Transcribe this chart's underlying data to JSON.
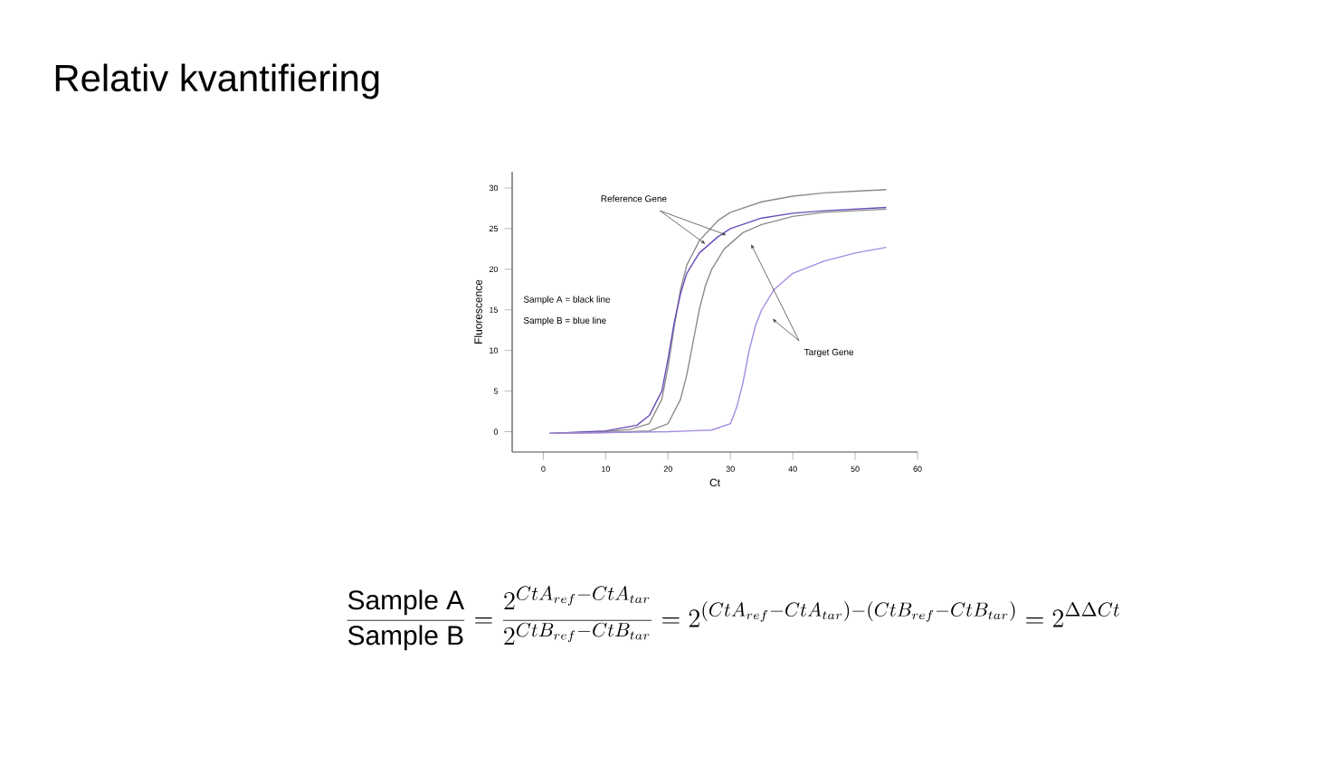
{
  "chart_data": {
    "type": "line",
    "title": "Relativ kvantifiering",
    "xlabel": "Ct",
    "ylabel": "Fluorescence",
    "xlim": [
      -5,
      60
    ],
    "ylim": [
      -2.5,
      32
    ],
    "xticks": [
      0,
      10,
      20,
      30,
      40,
      50,
      60
    ],
    "yticks": [
      0,
      5,
      10,
      15,
      20,
      25,
      30
    ],
    "marker": "none",
    "line_style": "solid",
    "grid": false,
    "series": [
      {
        "color": "#8c8c8c",
        "x": [
          1,
          10,
          14,
          17,
          19,
          20,
          21,
          22,
          23,
          25,
          28,
          30,
          35,
          40,
          45,
          50,
          55
        ],
        "values": [
          -0.2,
          0,
          0.3,
          1,
          4,
          8,
          13,
          17.5,
          20.5,
          23.5,
          26,
          27,
          28.3,
          29,
          29.4,
          29.6,
          29.8
        ]
      },
      {
        "color": "#6a4cb8",
        "x": [
          1,
          10,
          15,
          17,
          19,
          20,
          21,
          22,
          23,
          25,
          28,
          30,
          35,
          40,
          45,
          50,
          55
        ],
        "values": [
          -0.2,
          0.1,
          0.8,
          2,
          5,
          9,
          13.5,
          17,
          19.5,
          22,
          24,
          25,
          26.3,
          26.9,
          27.2,
          27.4,
          27.6
        ]
      },
      {
        "color": "#8c8c8c",
        "x": [
          1,
          10,
          17,
          20,
          22,
          23,
          24,
          25,
          26,
          27,
          29,
          32,
          35,
          40,
          45,
          50,
          55
        ],
        "values": [
          -0.2,
          -0.1,
          0.1,
          1,
          4,
          7,
          11,
          15,
          18,
          20,
          22.5,
          24.5,
          25.5,
          26.5,
          27,
          27.2,
          27.4
        ]
      },
      {
        "color": "#a58be0",
        "x": [
          1,
          10,
          20,
          27,
          30,
          31,
          32,
          33,
          34,
          35,
          37,
          40,
          45,
          50,
          55
        ],
        "values": [
          -0.2,
          -0.1,
          0,
          0.2,
          1,
          3,
          6,
          10,
          13,
          15,
          17.5,
          19.5,
          21,
          22,
          22.7
        ]
      }
    ],
    "annotations": [
      {
        "text": "Reference Gene",
        "x": 29.4,
        "y": 24.2
      },
      {
        "text": "Target Gene",
        "x": 33.3,
        "y": 23.1
      },
      "Sample A = black line",
      "Sample B = blue line",
      "\\frac{\\mathrm{Sample\\ A}}{\\mathrm{Sample\\ B}}=\\frac{2^{CtA_{ref}-CtA_{tar}}}{2^{CtB_{ref}-CtB_{tar}}}=2^{(CtA_{ref}-CtA_{tar})-(CtB_{ref}-CtB_{tar})}=2^{\\Delta\\Delta Ct}"
    ]
  }
}
